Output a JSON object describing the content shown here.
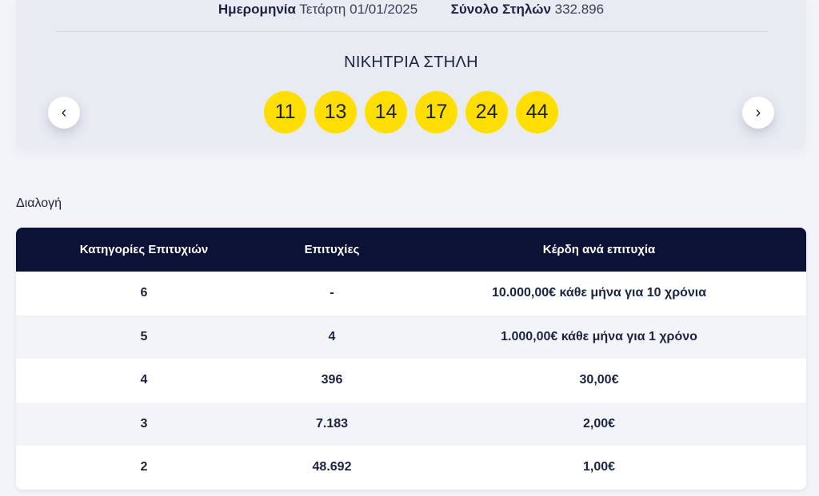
{
  "draw_info": {
    "date_label": "Ημερομηνία",
    "date_value": "Τετάρτη 01/01/2025",
    "total_label": "Σύνολο Στηλών",
    "total_value": "332.896"
  },
  "winning_title": "ΝΙΚΗΤΡΙΑ ΣΤΗΛΗ",
  "winning_numbers": [
    "11",
    "13",
    "14",
    "17",
    "24",
    "44"
  ],
  "nav": {
    "prev_glyph": "‹",
    "next_glyph": "›"
  },
  "section_label": "Διαλογή",
  "table": {
    "headers": [
      "Κατηγορίες Επιτυχιών",
      "Επιτυχίες",
      "Κέρδη ανά επιτυχία"
    ],
    "rows": [
      [
        "6",
        "-",
        "10.000,00€ κάθε μήνα για 10 χρόνια"
      ],
      [
        "5",
        "4",
        "1.000,00€ κάθε μήνα για 1 χρόνο"
      ],
      [
        "4",
        "396",
        "30,00€"
      ],
      [
        "3",
        "7.183",
        "2,00€"
      ],
      [
        "2",
        "48.692",
        "1,00€"
      ]
    ]
  },
  "colors": {
    "ball": "#ffde00",
    "header_bg": "#0b1236",
    "card_bg": "#e9ebf3"
  }
}
